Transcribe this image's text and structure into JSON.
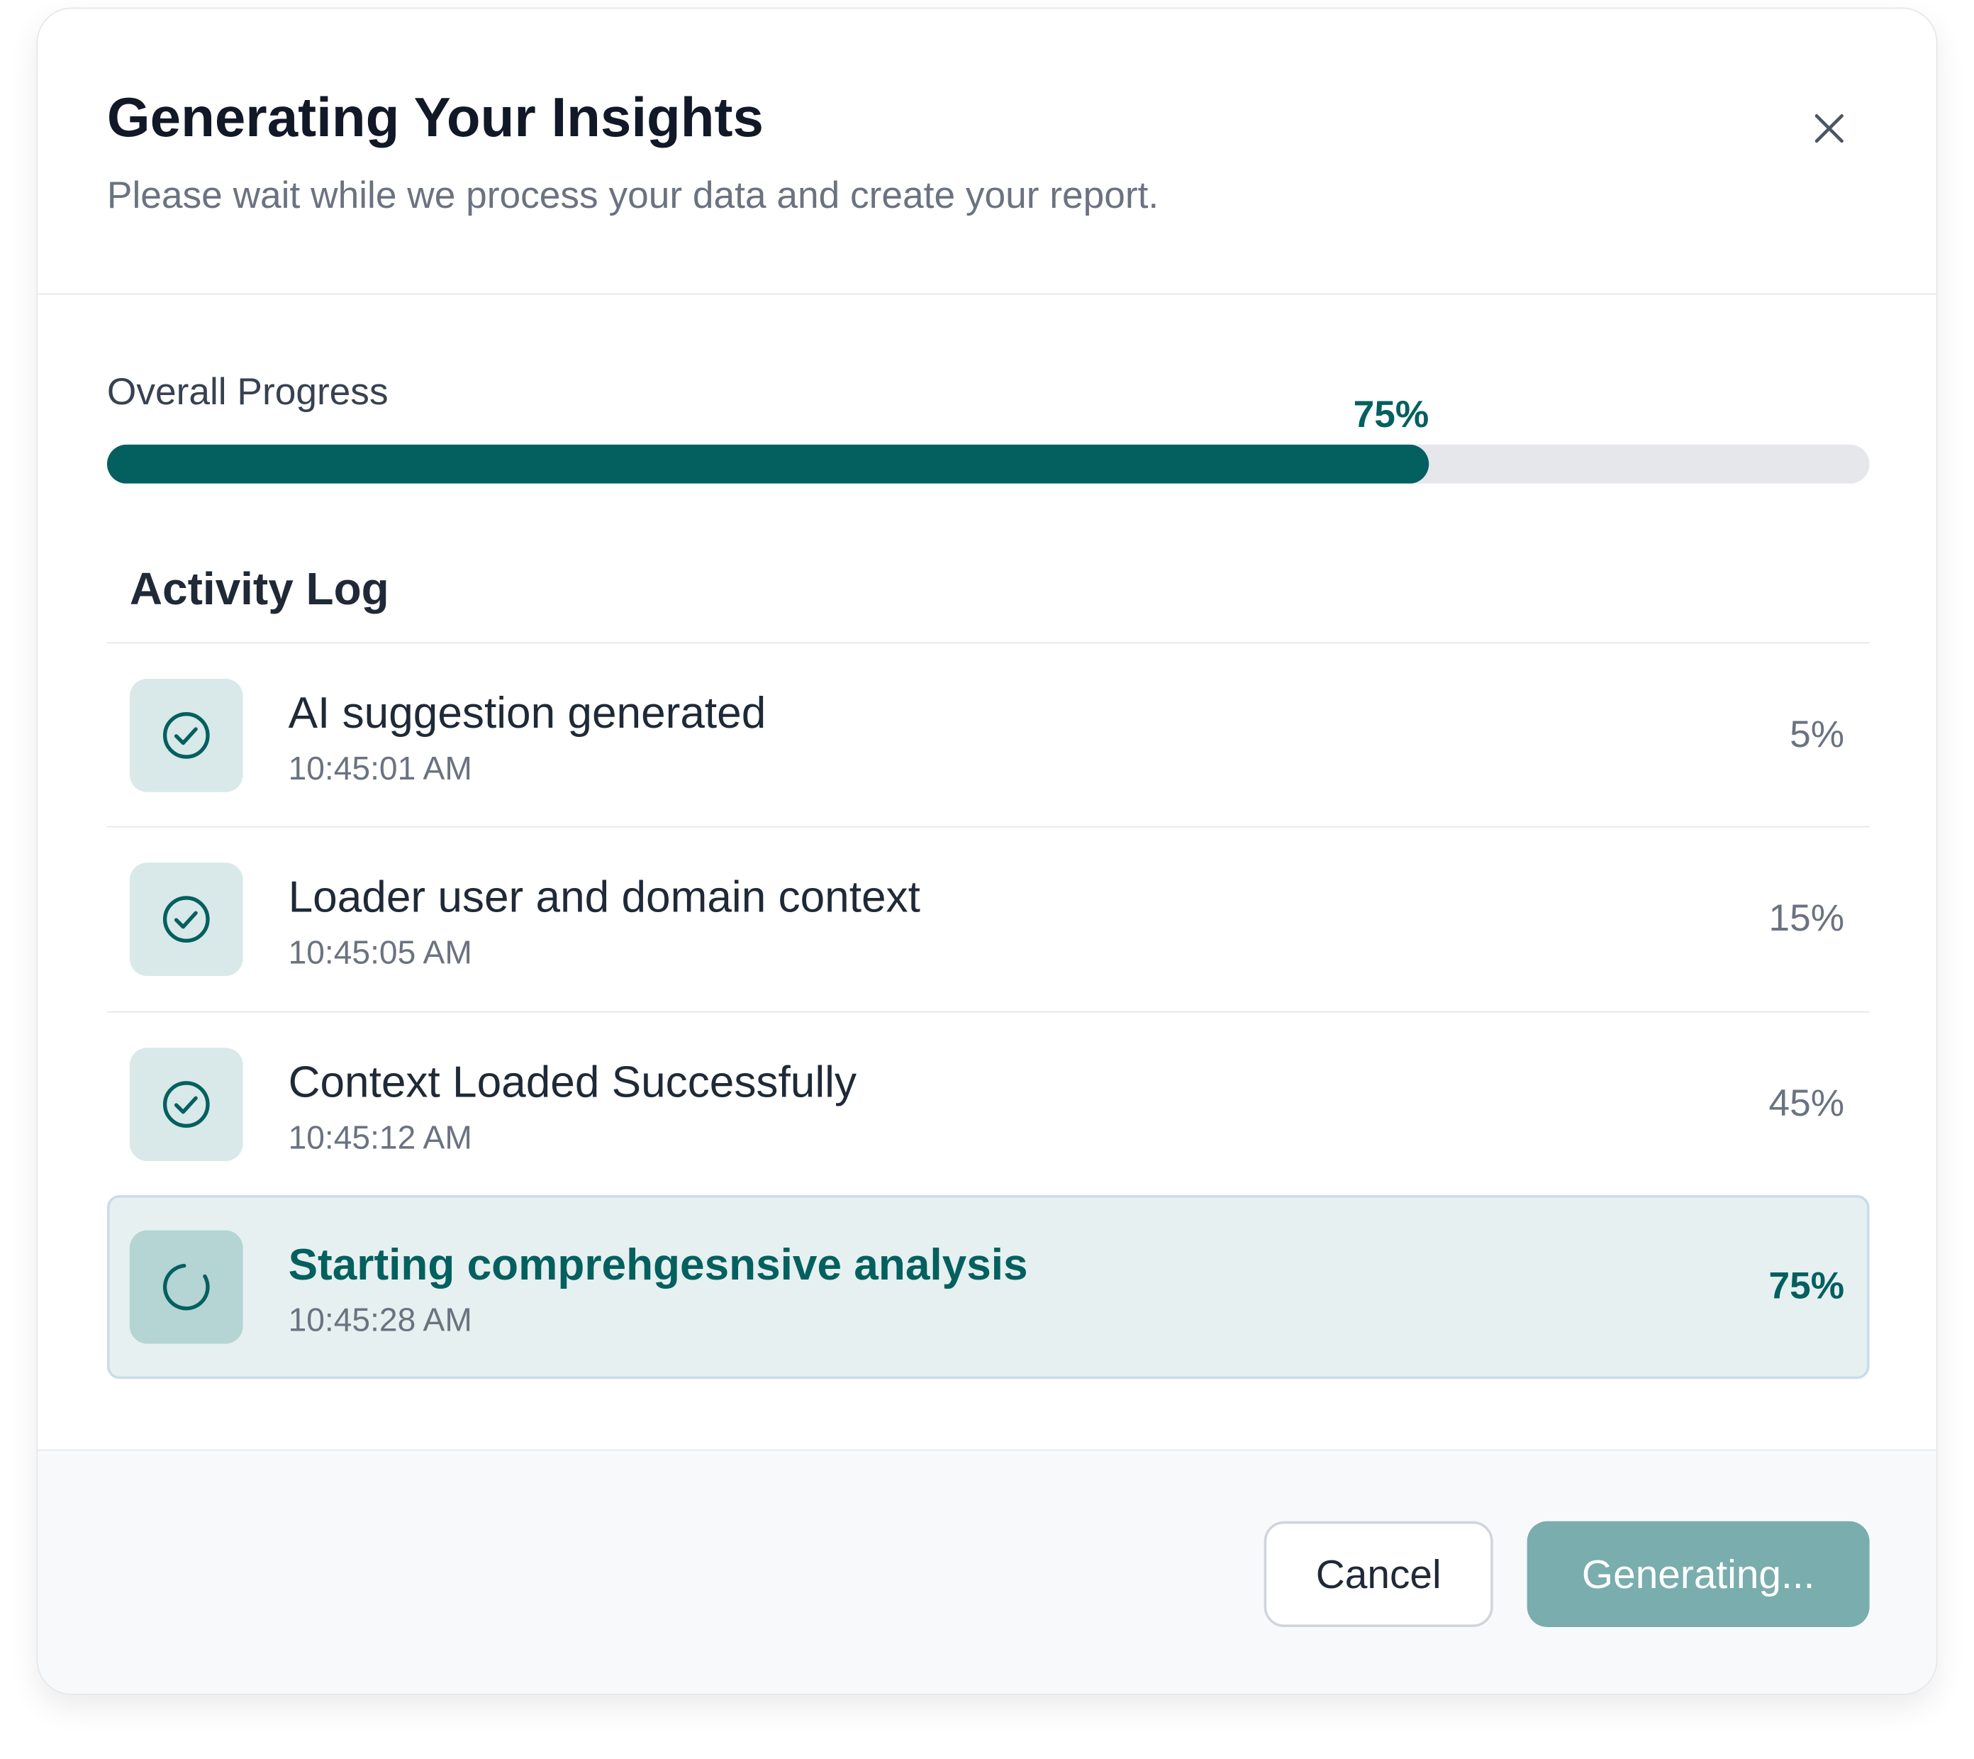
{
  "header": {
    "title": "Generating Your Insights",
    "subtitle": "Please wait while we process your data and create your report."
  },
  "progress": {
    "label": "Overall Progress",
    "value": 75,
    "value_label": "75%"
  },
  "activity_log": {
    "title": "Activity Log",
    "items": [
      {
        "title": "AI suggestion generated",
        "time": "10:45:01 AM",
        "percent": "5%"
      },
      {
        "title": "Loader user and domain context",
        "time": "10:45:05 AM",
        "percent": "15%"
      },
      {
        "title": "Context Loaded Successfully",
        "time": "10:45:12 AM",
        "percent": "45%"
      },
      {
        "title": "Starting comprehgesnsive analysis",
        "time": "10:45:28 AM",
        "percent": "75%"
      }
    ]
  },
  "buttons": {
    "cancel": "Cancel",
    "primary": "Generating..."
  }
}
